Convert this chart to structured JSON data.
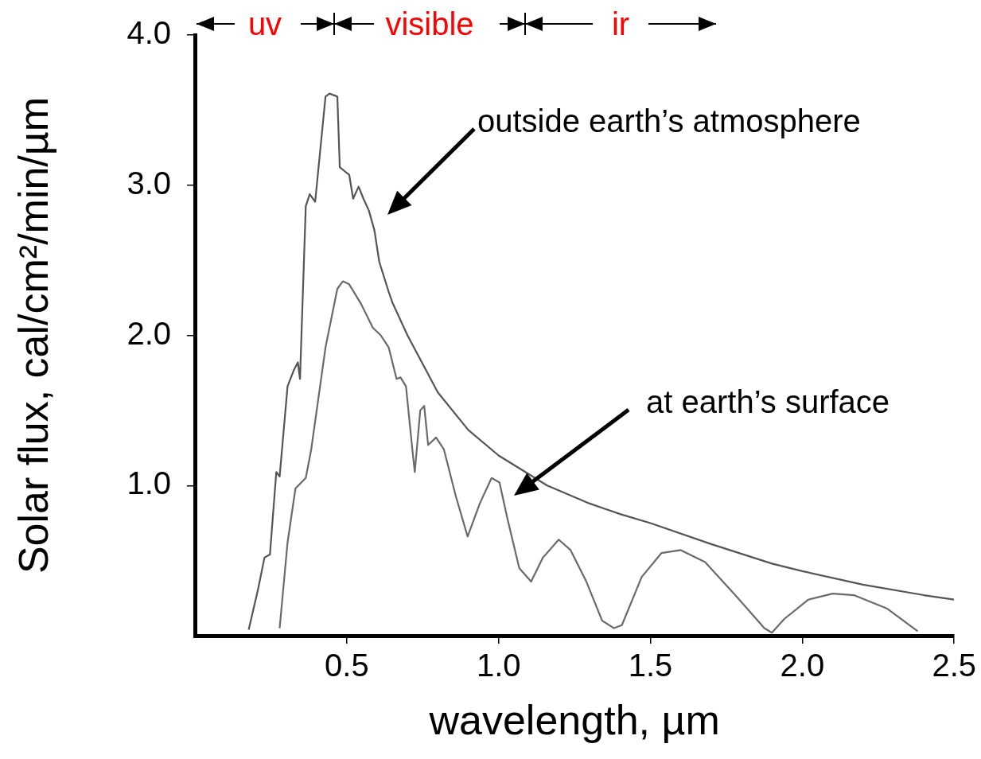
{
  "chart_data": {
    "type": "line",
    "xlabel": "wavelength, µm",
    "ylabel": "Solar flux, cal/cm²/min/µm",
    "xlim": [
      0,
      2.5
    ],
    "ylim": [
      0,
      4
    ],
    "xticks": [
      {
        "value": 0.5,
        "label": "0.5"
      },
      {
        "value": 1,
        "label": "1.0"
      },
      {
        "value": 1.5,
        "label": "1.5"
      },
      {
        "value": 2,
        "label": "2.0"
      },
      {
        "value": 2.5,
        "label": "2.5"
      }
    ],
    "yticks": [
      {
        "value": 1,
        "label": "1.0"
      },
      {
        "value": 2,
        "label": "2.0"
      },
      {
        "value": 3,
        "label": "3.0"
      },
      {
        "value": 4,
        "label": "4.0"
      }
    ],
    "grid": false,
    "legend": false,
    "marker": "none",
    "line_style": "solid",
    "series": [
      {
        "color": "#555555",
        "x": [
          0.177,
          0.208,
          0.229,
          0.247,
          0.268,
          0.279,
          0.305,
          0.326,
          0.339,
          0.346,
          0.365,
          0.378,
          0.396,
          0.43,
          0.443,
          0.469,
          0.477,
          0.495,
          0.508,
          0.521,
          0.539,
          0.555,
          0.573,
          0.591,
          0.607,
          0.638,
          0.65,
          0.7,
          0.8,
          0.9,
          1.0,
          1.16,
          1.3,
          1.4,
          1.5,
          1.7,
          1.9,
          2.0,
          2.2,
          2.4,
          2.5
        ],
        "values": [
          0.04,
          0.31,
          0.52,
          0.54,
          1.09,
          1.06,
          1.66,
          1.77,
          1.82,
          1.71,
          2.86,
          2.94,
          2.89,
          3.59,
          3.61,
          3.59,
          3.12,
          3.09,
          3.07,
          2.91,
          2.99,
          2.91,
          2.83,
          2.7,
          2.49,
          2.29,
          2.22,
          2.0,
          1.62,
          1.37,
          1.2,
          1.0,
          0.88,
          0.81,
          0.75,
          0.61,
          0.48,
          0.43,
          0.34,
          0.27,
          0.24
        ]
      },
      {
        "color": "#6a6a6a",
        "x": [
          0.279,
          0.305,
          0.331,
          0.365,
          0.383,
          0.43,
          0.469,
          0.487,
          0.508,
          0.547,
          0.586,
          0.612,
          0.638,
          0.664,
          0.677,
          0.695,
          0.716,
          0.724,
          0.742,
          0.755,
          0.768,
          0.794,
          0.82,
          0.859,
          0.898,
          0.938,
          0.977,
          1.003,
          1.029,
          1.068,
          1.107,
          1.146,
          1.198,
          1.237,
          1.289,
          1.341,
          1.38,
          1.406,
          1.471,
          1.536,
          1.6,
          1.68,
          1.784,
          1.875,
          1.9,
          1.94,
          2.02,
          2.1,
          2.17,
          2.28,
          2.38
        ],
        "values": [
          0.05,
          0.62,
          0.98,
          1.05,
          1.24,
          1.92,
          2.31,
          2.36,
          2.34,
          2.21,
          2.05,
          2.0,
          1.92,
          1.71,
          1.72,
          1.66,
          1.24,
          1.09,
          1.5,
          1.53,
          1.27,
          1.32,
          1.24,
          0.93,
          0.66,
          0.88,
          1.05,
          1.02,
          0.78,
          0.45,
          0.36,
          0.52,
          0.64,
          0.57,
          0.36,
          0.1,
          0.05,
          0.07,
          0.39,
          0.55,
          0.57,
          0.49,
          0.26,
          0.05,
          0.02,
          0.11,
          0.24,
          0.28,
          0.27,
          0.18,
          0.03
        ]
      }
    ],
    "annotations": [
      "uv",
      "visible",
      "ir",
      "outside earth’s atmosphere",
      "at earth’s surface"
    ]
  }
}
